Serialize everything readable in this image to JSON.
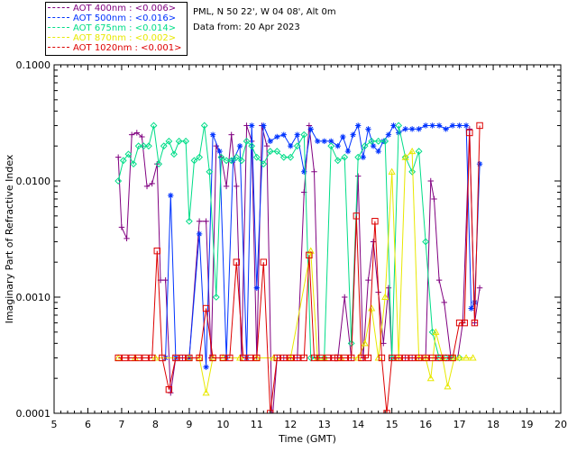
{
  "header": {
    "site": "PML, N 50 22', W 04 08', Alt 0m",
    "date": "Data from: 20 Apr 2023"
  },
  "legend": [
    {
      "label": "AOT  400nm : <0.006>",
      "color": "#800080"
    },
    {
      "label": "AOT  500nm : <0.016>",
      "color": "#0033ff"
    },
    {
      "label": "AOT  675nm : <0.014>",
      "color": "#00dd88"
    },
    {
      "label": "AOT  870nm : <0.002>",
      "color": "#e8e800"
    },
    {
      "label": "AOT 1020nm : <0.001>",
      "color": "#dd0000"
    }
  ],
  "chart_data": {
    "type": "line",
    "xlabel": "Time (GMT)",
    "ylabel": "Imaginary Part of Refractive Index",
    "xlim": [
      5,
      20
    ],
    "ylim": [
      0.0001,
      0.1
    ],
    "yscale": "log",
    "x_ticks": [
      "5",
      "6",
      "7",
      "8",
      "9",
      "10",
      "11",
      "12",
      "13",
      "14",
      "15",
      "16",
      "17",
      "18",
      "19",
      "20"
    ],
    "y_ticks": [
      "0.0001",
      "0.0010",
      "0.0100",
      "0.1000"
    ],
    "series": [
      {
        "name": "AOT  400nm : <0.006>",
        "color": "#800080",
        "marker": "plus",
        "points": [
          [
            6.9,
            0.016
          ],
          [
            7.0,
            0.004
          ],
          [
            7.15,
            0.0032
          ],
          [
            7.3,
            0.025
          ],
          [
            7.45,
            0.026
          ],
          [
            7.6,
            0.024
          ],
          [
            7.75,
            0.009
          ],
          [
            7.9,
            0.0095
          ],
          [
            8.05,
            0.014
          ],
          [
            8.15,
            0.0014
          ],
          [
            8.3,
            0.0014
          ],
          [
            8.45,
            0.00015
          ],
          [
            8.6,
            0.0003
          ],
          [
            8.8,
            0.0003
          ],
          [
            9.0,
            0.0003
          ],
          [
            9.3,
            0.0045
          ],
          [
            9.5,
            0.0045
          ],
          [
            9.65,
            0.0003
          ],
          [
            9.8,
            0.02
          ],
          [
            9.95,
            0.016
          ],
          [
            10.1,
            0.009
          ],
          [
            10.25,
            0.025
          ],
          [
            10.4,
            0.009
          ],
          [
            10.55,
            0.0003
          ],
          [
            10.7,
            0.03
          ],
          [
            10.85,
            0.022
          ],
          [
            11.0,
            0.0003
          ],
          [
            11.15,
            0.03
          ],
          [
            11.3,
            0.02
          ],
          [
            11.45,
            8e-05
          ],
          [
            11.6,
            0.0003
          ],
          [
            11.8,
            0.0003
          ],
          [
            12.0,
            0.0003
          ],
          [
            12.2,
            0.0003
          ],
          [
            12.4,
            0.008
          ],
          [
            12.55,
            0.03
          ],
          [
            12.7,
            0.012
          ],
          [
            12.85,
            0.0003
          ],
          [
            13.0,
            0.0003
          ],
          [
            13.2,
            0.0003
          ],
          [
            13.4,
            0.0003
          ],
          [
            13.6,
            0.001
          ],
          [
            13.8,
            0.0003
          ],
          [
            14.0,
            0.011
          ],
          [
            14.15,
            0.0003
          ],
          [
            14.3,
            0.0014
          ],
          [
            14.45,
            0.003
          ],
          [
            14.6,
            0.0011
          ],
          [
            14.75,
            0.0004
          ],
          [
            14.9,
            0.0012
          ],
          [
            15.0,
            0.0003
          ],
          [
            15.2,
            0.0003
          ],
          [
            15.4,
            0.0003
          ],
          [
            15.6,
            0.0003
          ],
          [
            15.8,
            0.0003
          ],
          [
            16.0,
            0.0003
          ],
          [
            16.15,
            0.01
          ],
          [
            16.25,
            0.007
          ],
          [
            16.4,
            0.0014
          ],
          [
            16.55,
            0.0009
          ],
          [
            16.75,
            0.0003
          ],
          [
            16.95,
            0.0003
          ],
          [
            17.1,
            0.0006
          ],
          [
            17.3,
            0.028
          ],
          [
            17.45,
            0.0006
          ],
          [
            17.6,
            0.0012
          ]
        ]
      },
      {
        "name": "AOT  500nm : <0.016>",
        "color": "#0033ff",
        "marker": "star",
        "points": [
          [
            8.3,
            0.0003
          ],
          [
            8.45,
            0.0075
          ],
          [
            8.6,
            0.0003
          ],
          [
            9.0,
            0.0003
          ],
          [
            9.3,
            0.0035
          ],
          [
            9.5,
            0.00025
          ],
          [
            9.7,
            0.025
          ],
          [
            9.9,
            0.018
          ],
          [
            10.1,
            0.0003
          ],
          [
            10.3,
            0.015
          ],
          [
            10.5,
            0.02
          ],
          [
            10.7,
            0.0003
          ],
          [
            10.85,
            0.03
          ],
          [
            11.0,
            0.0012
          ],
          [
            11.2,
            0.03
          ],
          [
            11.4,
            0.022
          ],
          [
            11.6,
            0.024
          ],
          [
            11.8,
            0.025
          ],
          [
            12.0,
            0.02
          ],
          [
            12.2,
            0.025
          ],
          [
            12.4,
            0.012
          ],
          [
            12.6,
            0.028
          ],
          [
            12.8,
            0.022
          ],
          [
            13.0,
            0.022
          ],
          [
            13.2,
            0.022
          ],
          [
            13.4,
            0.02
          ],
          [
            13.55,
            0.024
          ],
          [
            13.7,
            0.018
          ],
          [
            13.85,
            0.025
          ],
          [
            14.0,
            0.03
          ],
          [
            14.15,
            0.016
          ],
          [
            14.3,
            0.028
          ],
          [
            14.45,
            0.02
          ],
          [
            14.6,
            0.018
          ],
          [
            14.75,
            0.022
          ],
          [
            14.9,
            0.025
          ],
          [
            15.05,
            0.03
          ],
          [
            15.2,
            0.026
          ],
          [
            15.4,
            0.028
          ],
          [
            15.6,
            0.028
          ],
          [
            15.8,
            0.028
          ],
          [
            16.0,
            0.03
          ],
          [
            16.2,
            0.03
          ],
          [
            16.4,
            0.03
          ],
          [
            16.6,
            0.028
          ],
          [
            16.8,
            0.03
          ],
          [
            17.0,
            0.03
          ],
          [
            17.2,
            0.03
          ],
          [
            17.35,
            0.0008
          ],
          [
            17.45,
            0.0009
          ],
          [
            17.6,
            0.014
          ]
        ]
      },
      {
        "name": "AOT  675nm : <0.014>",
        "color": "#00dd88",
        "marker": "diamond",
        "points": [
          [
            6.9,
            0.01
          ],
          [
            7.05,
            0.015
          ],
          [
            7.2,
            0.017
          ],
          [
            7.35,
            0.014
          ],
          [
            7.5,
            0.02
          ],
          [
            7.65,
            0.02
          ],
          [
            7.8,
            0.02
          ],
          [
            7.95,
            0.03
          ],
          [
            8.1,
            0.014
          ],
          [
            8.25,
            0.02
          ],
          [
            8.4,
            0.022
          ],
          [
            8.55,
            0.017
          ],
          [
            8.7,
            0.022
          ],
          [
            8.9,
            0.022
          ],
          [
            9.0,
            0.0045
          ],
          [
            9.15,
            0.015
          ],
          [
            9.3,
            0.016
          ],
          [
            9.45,
            0.03
          ],
          [
            9.6,
            0.012
          ],
          [
            9.8,
            0.001
          ],
          [
            9.95,
            0.016
          ],
          [
            10.1,
            0.015
          ],
          [
            10.25,
            0.015
          ],
          [
            10.4,
            0.016
          ],
          [
            10.55,
            0.015
          ],
          [
            10.7,
            0.022
          ],
          [
            10.85,
            0.02
          ],
          [
            11.0,
            0.016
          ],
          [
            11.2,
            0.014
          ],
          [
            11.4,
            0.018
          ],
          [
            11.6,
            0.018
          ],
          [
            11.8,
            0.016
          ],
          [
            12.0,
            0.016
          ],
          [
            12.2,
            0.02
          ],
          [
            12.4,
            0.025
          ],
          [
            12.6,
            0.0003
          ],
          [
            12.8,
            0.0003
          ],
          [
            13.0,
            0.0003
          ],
          [
            13.2,
            0.02
          ],
          [
            13.4,
            0.015
          ],
          [
            13.6,
            0.016
          ],
          [
            13.8,
            0.0004
          ],
          [
            14.0,
            0.016
          ],
          [
            14.2,
            0.02
          ],
          [
            14.4,
            0.022
          ],
          [
            14.6,
            0.022
          ],
          [
            14.8,
            0.022
          ],
          [
            15.0,
            0.0003
          ],
          [
            15.2,
            0.03
          ],
          [
            15.4,
            0.016
          ],
          [
            15.6,
            0.012
          ],
          [
            15.8,
            0.018
          ],
          [
            16.0,
            0.003
          ],
          [
            16.2,
            0.0005
          ],
          [
            16.4,
            0.0003
          ],
          [
            16.6,
            0.0003
          ],
          [
            16.8,
            0.0003
          ],
          [
            17.0,
            0.0003
          ]
        ]
      },
      {
        "name": "AOT  870nm : <0.002>",
        "color": "#e8e800",
        "marker": "triangle",
        "points": [
          [
            6.9,
            0.0003
          ],
          [
            7.4,
            0.0003
          ],
          [
            8.0,
            0.0003
          ],
          [
            9.0,
            0.0003
          ],
          [
            9.3,
            0.0003
          ],
          [
            9.5,
            0.00015
          ],
          [
            9.7,
            0.0003
          ],
          [
            10.0,
            0.0003
          ],
          [
            10.5,
            0.0003
          ],
          [
            11.0,
            0.0003
          ],
          [
            11.5,
            0.0003
          ],
          [
            12.0,
            0.0003
          ],
          [
            12.6,
            0.0025
          ],
          [
            12.8,
            0.0003
          ],
          [
            13.0,
            0.0003
          ],
          [
            13.5,
            0.0003
          ],
          [
            14.0,
            0.0003
          ],
          [
            14.2,
            0.0004
          ],
          [
            14.4,
            0.0008
          ],
          [
            14.6,
            0.0003
          ],
          [
            14.8,
            0.001
          ],
          [
            15.0,
            0.012
          ],
          [
            15.2,
            0.0003
          ],
          [
            15.4,
            0.016
          ],
          [
            15.6,
            0.018
          ],
          [
            15.8,
            0.0003
          ],
          [
            16.0,
            0.0003
          ],
          [
            16.15,
            0.0002
          ],
          [
            16.3,
            0.0005
          ],
          [
            16.5,
            0.0003
          ],
          [
            16.65,
            0.00017
          ],
          [
            16.85,
            0.0003
          ],
          [
            17.0,
            0.0003
          ],
          [
            17.2,
            0.0003
          ],
          [
            17.4,
            0.0003
          ]
        ]
      },
      {
        "name": "AOT 1020nm : <0.001>",
        "color": "#dd0000",
        "marker": "square",
        "points": [
          [
            6.9,
            0.0003
          ],
          [
            7.1,
            0.0003
          ],
          [
            7.3,
            0.0003
          ],
          [
            7.5,
            0.0003
          ],
          [
            7.7,
            0.0003
          ],
          [
            7.9,
            0.0003
          ],
          [
            8.05,
            0.0025
          ],
          [
            8.2,
            0.0003
          ],
          [
            8.4,
            0.00016
          ],
          [
            8.6,
            0.0003
          ],
          [
            8.8,
            0.0003
          ],
          [
            9.0,
            0.0003
          ],
          [
            9.3,
            0.0003
          ],
          [
            9.5,
            0.0008
          ],
          [
            9.7,
            0.0003
          ],
          [
            10.0,
            0.0003
          ],
          [
            10.2,
            0.0003
          ],
          [
            10.4,
            0.002
          ],
          [
            10.6,
            0.0003
          ],
          [
            10.8,
            0.0003
          ],
          [
            11.0,
            0.0003
          ],
          [
            11.2,
            0.002
          ],
          [
            11.4,
            0.0001
          ],
          [
            11.6,
            0.0003
          ],
          [
            11.8,
            0.0003
          ],
          [
            12.0,
            0.0003
          ],
          [
            12.2,
            0.0003
          ],
          [
            12.4,
            0.0003
          ],
          [
            12.55,
            0.0023
          ],
          [
            12.7,
            0.0003
          ],
          [
            12.9,
            0.0003
          ],
          [
            13.1,
            0.0003
          ],
          [
            13.3,
            0.0003
          ],
          [
            13.4,
            0.0003
          ],
          [
            13.6,
            0.0003
          ],
          [
            13.8,
            0.0003
          ],
          [
            13.95,
            0.005
          ],
          [
            14.1,
            0.0003
          ],
          [
            14.3,
            0.0003
          ],
          [
            14.5,
            0.0045
          ],
          [
            14.7,
            0.0003
          ],
          [
            14.85,
            0.0001
          ],
          [
            15.0,
            0.0003
          ],
          [
            15.2,
            0.0003
          ],
          [
            15.4,
            0.0003
          ],
          [
            15.6,
            0.0003
          ],
          [
            15.8,
            0.0003
          ],
          [
            16.0,
            0.0003
          ],
          [
            16.2,
            0.0003
          ],
          [
            16.4,
            0.0003
          ],
          [
            16.6,
            0.0003
          ],
          [
            16.8,
            0.0003
          ],
          [
            17.0,
            0.0006
          ],
          [
            17.15,
            0.0006
          ],
          [
            17.3,
            0.026
          ],
          [
            17.45,
            0.0006
          ],
          [
            17.6,
            0.03
          ]
        ]
      }
    ]
  }
}
